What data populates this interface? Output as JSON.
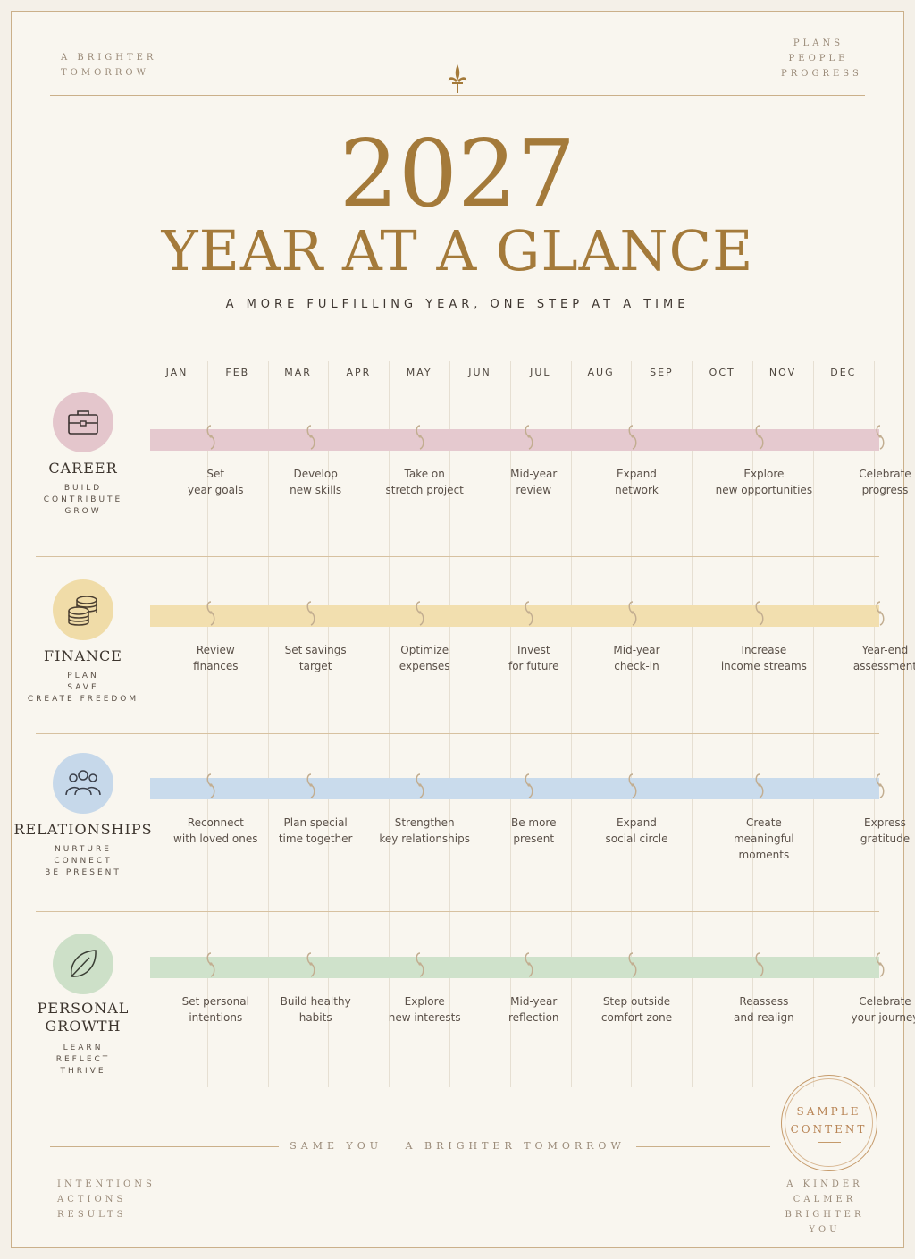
{
  "header": {
    "left_tag": [
      "A BRIGHTER",
      "TOMORROW"
    ],
    "right_tag": [
      "PLANS",
      "PEOPLE",
      "PROGRESS"
    ],
    "year": "2027",
    "title": "YEAR AT A GLANCE",
    "subtitle": "A MORE FULFILLING YEAR, ONE STEP AT A TIME"
  },
  "months": [
    "JAN",
    "FEB",
    "MAR",
    "APR",
    "MAY",
    "JUN",
    "JUL",
    "AUG",
    "SEP",
    "OCT",
    "NOV",
    "DEC"
  ],
  "categories": [
    {
      "title": "CAREER",
      "sub": [
        "BUILD",
        "CONTRIBUTE",
        "GROW"
      ],
      "icon": "briefcase-icon",
      "circle_color": "#e4c6cc",
      "bar_color": "#e5c9cf",
      "goals": [
        "Set\nyear goals",
        "Develop\nnew skills",
        "Take on\nstretch project",
        "Mid-year\nreview",
        "Expand\nnetwork",
        "Explore\nnew opportunities",
        "Celebrate\nprogress"
      ]
    },
    {
      "title": "FINANCE",
      "sub": [
        "PLAN",
        "SAVE",
        "CREATE FREEDOM"
      ],
      "icon": "coins-icon",
      "circle_color": "#f0dca8",
      "bar_color": "#f2dfaf",
      "goals": [
        "Review\nfinances",
        "Set savings\ntarget",
        "Optimize\nexpenses",
        "Invest\nfor future",
        "Mid-year\ncheck-in",
        "Increase\nincome streams",
        "Year-end\nassessment"
      ]
    },
    {
      "title": "RELATIONSHIPS",
      "sub": [
        "NURTURE",
        "CONNECT",
        "BE PRESENT"
      ],
      "icon": "people-icon",
      "circle_color": "#c6d8ea",
      "bar_color": "#c9dbec",
      "goals": [
        "Reconnect\nwith loved ones",
        "Plan special\ntime together",
        "Strengthen\nkey relationships",
        "Be more\npresent",
        "Expand\nsocial circle",
        "Create\nmeaningful moments",
        "Express\ngratitude"
      ]
    },
    {
      "title": "PERSONAL GROWTH",
      "sub": [
        "LEARN",
        "REFLECT",
        "THRIVE"
      ],
      "icon": "leaf-icon",
      "circle_color": "#cde0c8",
      "bar_color": "#cfe2cb",
      "goals": [
        "Set personal\nintentions",
        "Build healthy\nhabits",
        "Explore\nnew interests",
        "Mid-year\nreflection",
        "Step outside\ncomfort zone",
        "Reassess\nand realign",
        "Celebrate\nyour journey"
      ]
    }
  ],
  "footer": {
    "center": "SAME YOU   A BRIGHTER TOMORROW",
    "left_tag": [
      "INTENTIONS",
      "ACTIONS",
      "RESULTS"
    ],
    "right_tag": [
      "A KINDER",
      "CALMER",
      "BRIGHTER YOU"
    ],
    "stamp": [
      "SAMPLE",
      "CONTENT"
    ]
  },
  "colors": {
    "gold": "#a47a3a",
    "border": "#cbb08a",
    "paper": "#f9f6ef"
  }
}
